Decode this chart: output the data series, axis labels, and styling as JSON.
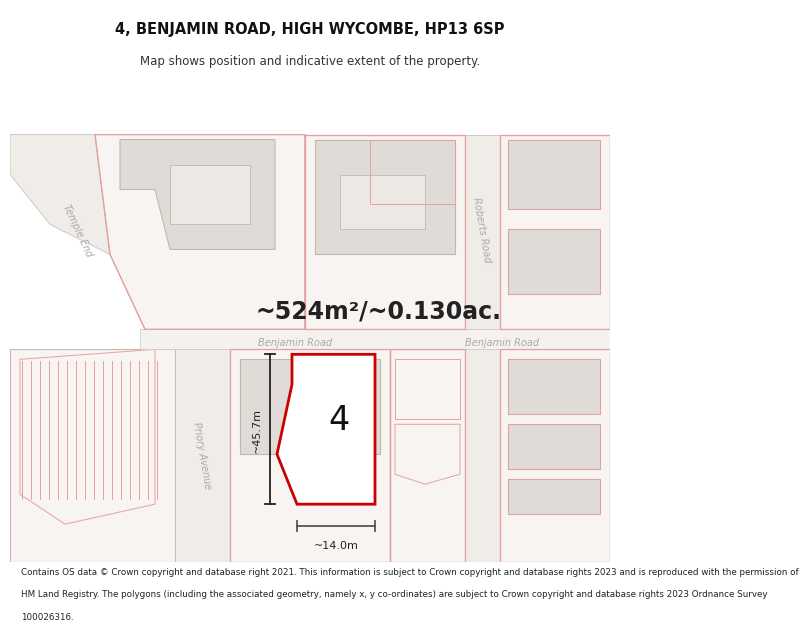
{
  "title": "4, BENJAMIN ROAD, HIGH WYCOMBE, HP13 6SP",
  "subtitle": "Map shows position and indicative extent of the property.",
  "area_text": "~524m²/~0.130ac.",
  "footer_lines": [
    "Contains OS data © Crown copyright and database right 2021. This information is subject to Crown copyright and database rights 2023 and is reproduced with the permission of",
    "HM Land Registry. The polygons (including the associated geometry, namely x, y co-ordinates) are subject to Crown copyright and database rights 2023 Ordnance Survey",
    "100026316."
  ],
  "bg_color": "#f7f4f1",
  "map_bg": "#ffffff",
  "property_fill": "#ffffff",
  "property_edge": "#cc0000",
  "building_fill": "#e0dbd6",
  "building_edge": "#c0b8b0",
  "plot_outline": "#c8b8b0",
  "road_line": "#c8b8b0",
  "red_line": "#e8a0a0",
  "road_label_color": "#999999",
  "dim_color": "#333333"
}
